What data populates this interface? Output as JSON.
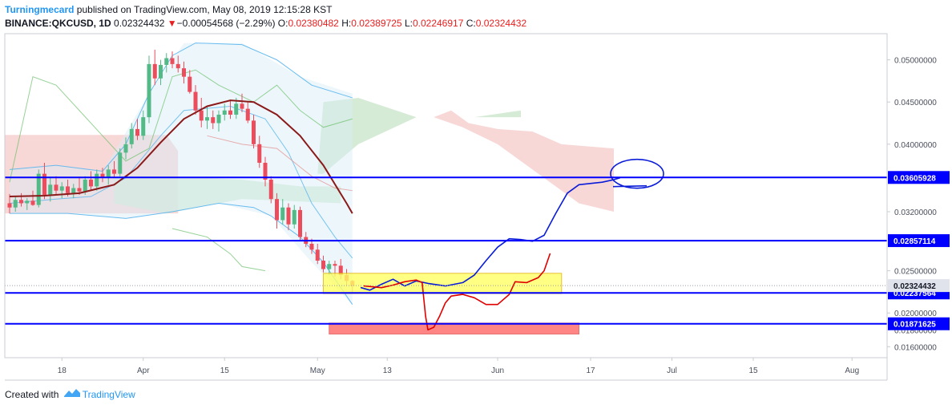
{
  "header": {
    "author": "Turningmecard",
    "published": " published on TradingView.com, May 08, 2019 12:15:28 KST",
    "symbol": "BINANCE:QKCUSD, 1D",
    "last": "0.02324432",
    "arrow": "▼",
    "change": "−0.00054568 (−2.29%)",
    "o_label": "O:",
    "o": "0.02380482",
    "h_label": "H:",
    "h": "0.02389725",
    "l_label": "L:",
    "l": "0.02246917",
    "c_label": "C:",
    "c": "0.02324432"
  },
  "footer": {
    "created_with": "Created with",
    "brand": "TradingView"
  },
  "colors": {
    "up": "#53b987",
    "down": "#eb4d5c",
    "level": "#0000ff",
    "ma": "#8b1a1a",
    "bb": "#5ab5ee",
    "cloud_green": "#cfe8cf",
    "cloud_red": "#f7d0d0",
    "drawing_blue": "#0a1cd8",
    "drawing_red": "#e00000"
  },
  "chart_data": {
    "type": "candlestick",
    "yrange": [
      0.0147,
      0.0531
    ],
    "y_ticks": [
      "0.05000000",
      "0.04500000",
      "0.04000000",
      "0.03200000",
      "0.02500000",
      "0.02000000",
      "0.01800000",
      "0.01600000"
    ],
    "y_tick_values": [
      0.05,
      0.045,
      0.04,
      0.032,
      0.025,
      0.02,
      0.018,
      0.016
    ],
    "x_ticks": [
      {
        "label": "18",
        "x": "2019-03-18"
      },
      {
        "label": "Apr",
        "x": "2019-04-01"
      },
      {
        "label": "15",
        "x": "2019-04-15"
      },
      {
        "label": "May",
        "x": "2019-05-01"
      },
      {
        "label": "13",
        "x": "2019-05-13"
      },
      {
        "label": "Jun",
        "x": "2019-06-01"
      },
      {
        "label": "17",
        "x": "2019-06-17"
      },
      {
        "label": "Jul",
        "x": "2019-07-01"
      },
      {
        "label": "15",
        "x": "2019-07-15"
      },
      {
        "label": "Aug",
        "x": "2019-08-01"
      }
    ],
    "first_date": "2019-03-09",
    "last_date": "2019-05-08",
    "candles": [
      [
        0.033,
        0.0341,
        0.0318,
        0.0325
      ],
      [
        0.0325,
        0.0338,
        0.032,
        0.0334
      ],
      [
        0.0334,
        0.0342,
        0.0326,
        0.033
      ],
      [
        0.033,
        0.0336,
        0.0322,
        0.0333
      ],
      [
        0.0333,
        0.0345,
        0.0327,
        0.0328
      ],
      [
        0.0328,
        0.037,
        0.0325,
        0.0365
      ],
      [
        0.0365,
        0.0378,
        0.0335,
        0.034
      ],
      [
        0.034,
        0.036,
        0.0332,
        0.0352
      ],
      [
        0.0352,
        0.0362,
        0.034,
        0.0345
      ],
      [
        0.0345,
        0.0355,
        0.0336,
        0.035
      ],
      [
        0.035,
        0.0358,
        0.0338,
        0.0342
      ],
      [
        0.0342,
        0.0353,
        0.0336,
        0.0348
      ],
      [
        0.0348,
        0.036,
        0.034,
        0.0344
      ],
      [
        0.0344,
        0.0362,
        0.034,
        0.0358
      ],
      [
        0.0358,
        0.0368,
        0.0345,
        0.035
      ],
      [
        0.035,
        0.037,
        0.0345,
        0.0365
      ],
      [
        0.0365,
        0.0372,
        0.0355,
        0.036
      ],
      [
        0.036,
        0.0375,
        0.0352,
        0.037
      ],
      [
        0.037,
        0.038,
        0.036,
        0.0365
      ],
      [
        0.0365,
        0.0395,
        0.0362,
        0.039
      ],
      [
        0.039,
        0.0408,
        0.0382,
        0.04
      ],
      [
        0.04,
        0.0425,
        0.0395,
        0.0418
      ],
      [
        0.0418,
        0.043,
        0.0405,
        0.041
      ],
      [
        0.041,
        0.044,
        0.0405,
        0.0432
      ],
      [
        0.0432,
        0.0505,
        0.0425,
        0.0495
      ],
      [
        0.0495,
        0.0512,
        0.047,
        0.0478
      ],
      [
        0.0478,
        0.05,
        0.047,
        0.0494
      ],
      [
        0.0494,
        0.0508,
        0.0485,
        0.0502
      ],
      [
        0.0502,
        0.051,
        0.049,
        0.0495
      ],
      [
        0.0495,
        0.0505,
        0.0485,
        0.049
      ],
      [
        0.049,
        0.0498,
        0.0472,
        0.048
      ],
      [
        0.048,
        0.0488,
        0.046,
        0.0462
      ],
      [
        0.0462,
        0.047,
        0.0435,
        0.044
      ],
      [
        0.044,
        0.0455,
        0.042,
        0.0428
      ],
      [
        0.0428,
        0.0445,
        0.0418,
        0.0432
      ],
      [
        0.0432,
        0.044,
        0.0418,
        0.0425
      ],
      [
        0.0425,
        0.044,
        0.0415,
        0.0435
      ],
      [
        0.0435,
        0.0448,
        0.0428,
        0.044
      ],
      [
        0.044,
        0.0452,
        0.043,
        0.0435
      ],
      [
        0.0435,
        0.0455,
        0.043,
        0.0448
      ],
      [
        0.0448,
        0.046,
        0.0438,
        0.0442
      ],
      [
        0.0442,
        0.045,
        0.0425,
        0.0428
      ],
      [
        0.0428,
        0.0435,
        0.0395,
        0.04
      ],
      [
        0.04,
        0.041,
        0.0372,
        0.0378
      ],
      [
        0.0378,
        0.0385,
        0.035,
        0.0358
      ],
      [
        0.0358,
        0.0362,
        0.033,
        0.0335
      ],
      [
        0.0335,
        0.0342,
        0.03,
        0.031
      ],
      [
        0.031,
        0.0335,
        0.0305,
        0.0325
      ],
      [
        0.0325,
        0.033,
        0.0298,
        0.0305
      ],
      [
        0.0305,
        0.0328,
        0.03,
        0.0322
      ],
      [
        0.0322,
        0.0326,
        0.0285,
        0.029
      ],
      [
        0.029,
        0.0296,
        0.0278,
        0.0282
      ],
      [
        0.0282,
        0.0288,
        0.027,
        0.0275
      ],
      [
        0.0275,
        0.0282,
        0.0258,
        0.0262
      ],
      [
        0.0262,
        0.0268,
        0.0248,
        0.0252
      ],
      [
        0.0252,
        0.0262,
        0.0245,
        0.0258
      ],
      [
        0.0258,
        0.0262,
        0.0243,
        0.0256
      ],
      [
        0.0256,
        0.0264,
        0.024,
        0.0245
      ],
      [
        0.0245,
        0.0252,
        0.0232,
        0.0238
      ],
      [
        0.0238,
        0.0239,
        0.0225,
        0.0232
      ]
    ],
    "horizontal_levels": [
      {
        "value": 0.03605928,
        "label": "0.03605928"
      },
      {
        "value": 0.02857114,
        "label": "0.02857114"
      },
      {
        "value": 0.02237564,
        "label": "0.02237564"
      },
      {
        "value": 0.01871625,
        "label": "0.01871625"
      }
    ],
    "last_price": {
      "value": 0.02324432,
      "label": "0.02324432"
    },
    "zones": [
      {
        "name": "yellow-zone",
        "x0": "2019-05-02",
        "x1": "2019-06-12",
        "y0": 0.0223,
        "y1": 0.0247,
        "color": "#ffff66"
      },
      {
        "name": "red-zone",
        "x0": "2019-05-03",
        "x1": "2019-06-15",
        "y0": 0.0175,
        "y1": 0.0188,
        "color": "#ff6666"
      }
    ]
  }
}
